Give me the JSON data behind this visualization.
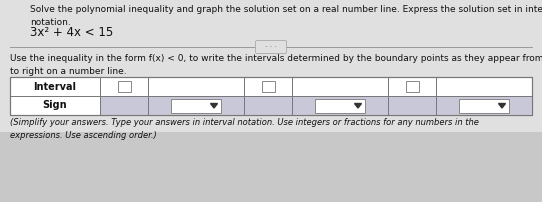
{
  "title_text": "Solve the polynomial inequality and graph the solution set on a real number line. Express the solution set in interval\nnotation.",
  "equation": "3x² + 4x < 15",
  "instruction": "Use the inequality in the form f(x) < 0, to write the intervals determined by the boundary points as they appear from left\nto right on a number line.",
  "footer": "(Simplify your answers. Type your answers in interval notation. Use integers or fractions for any numbers in the\nexpressions. Use ascending order.)",
  "table_row1": "Interval",
  "table_row2": "Sign",
  "bg_color": "#c8c8c8",
  "cell_bg": "#ffffff",
  "sign_cell_bg": "#c8c8d8",
  "border_color": "#777777",
  "text_color": "#111111",
  "divider_color": "#999999",
  "btn_color": "#e0e0e0",
  "arrow_color": "#333333",
  "footer_color": "#111111"
}
